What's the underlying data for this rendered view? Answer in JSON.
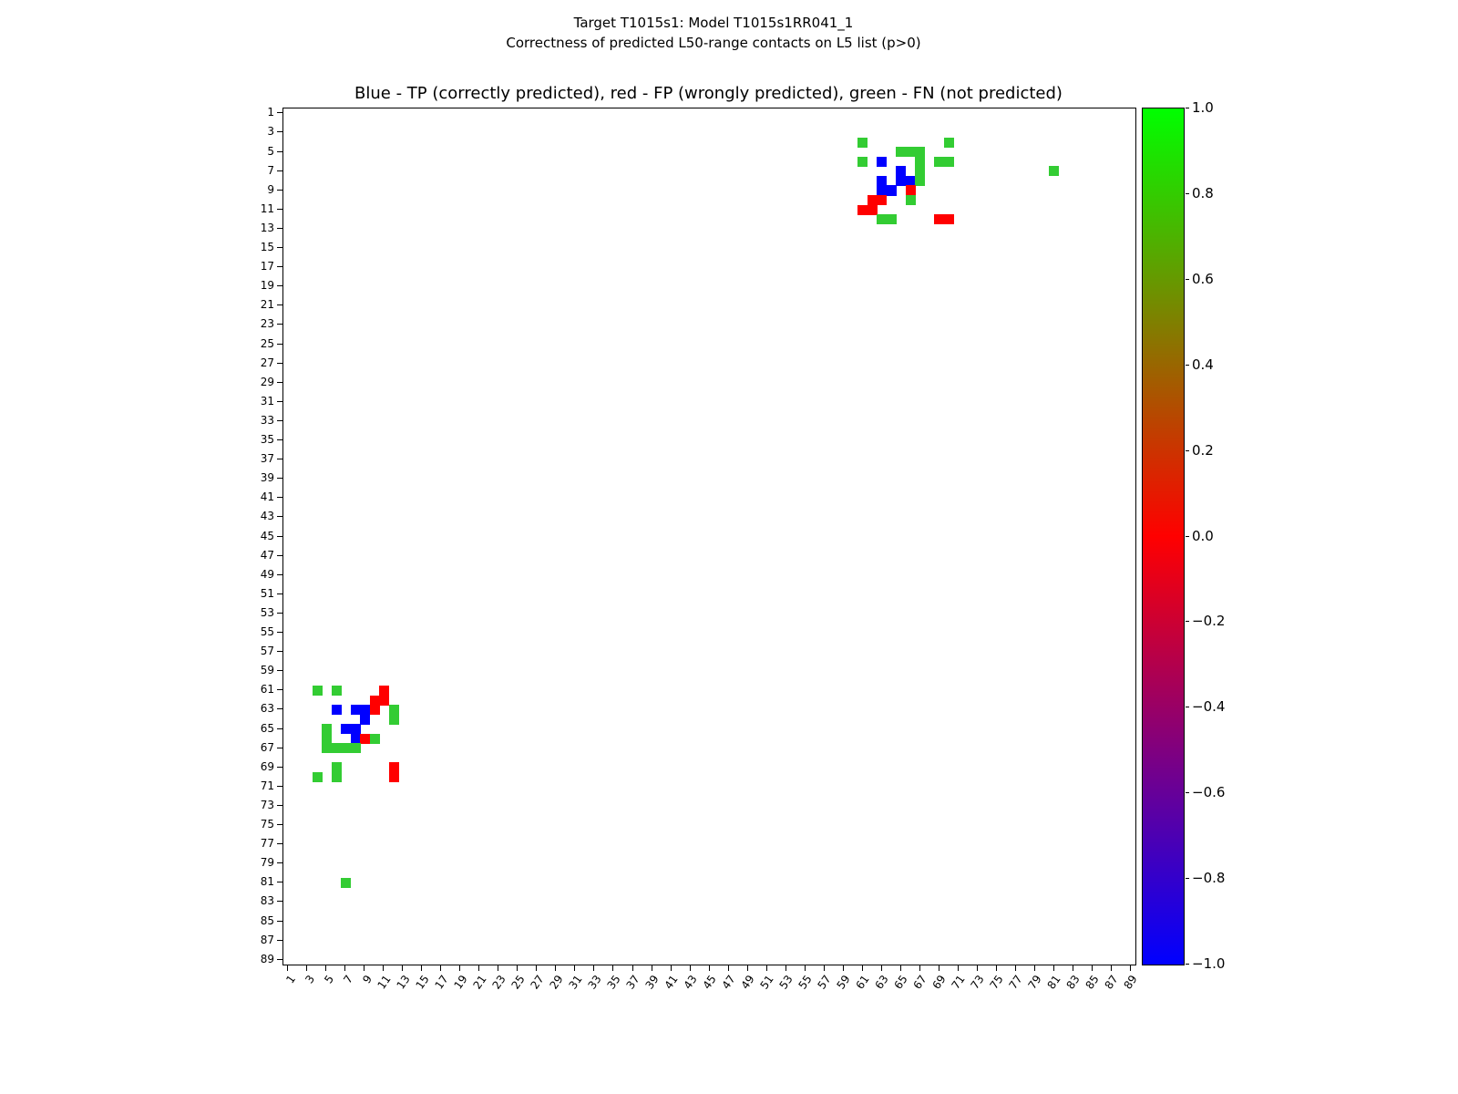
{
  "figure": {
    "title_line1": "Target T1015s1: Model T1015s1RR041_1",
    "title_line2": "Correctness of predicted L50-range contacts on L5 list (p>0)",
    "axes_title": "Blue - TP (correctly predicted), red - FP (wrongly predicted), green - FN (not predicted)"
  },
  "chart_data": {
    "type": "heatmap",
    "title": "Blue - TP (correctly predicted), red - FP (wrongly predicted), green - FN (not predicted)",
    "xlabel": "",
    "ylabel": "",
    "x_range": [
      1,
      90
    ],
    "y_range": [
      1,
      90
    ],
    "y_axis_inverted": true,
    "grid": false,
    "background": "#ffffff",
    "x_tick_labels": [
      "1",
      "3",
      "5",
      "7",
      "9",
      "11",
      "13",
      "15",
      "17",
      "19",
      "21",
      "23",
      "25",
      "27",
      "29",
      "31",
      "33",
      "35",
      "37",
      "39",
      "41",
      "43",
      "45",
      "47",
      "49",
      "51",
      "53",
      "55",
      "57",
      "59",
      "61",
      "63",
      "65",
      "67",
      "69",
      "71",
      "73",
      "75",
      "77",
      "79",
      "81",
      "83",
      "85",
      "87",
      "89"
    ],
    "y_tick_labels": [
      "1",
      "3",
      "5",
      "7",
      "9",
      "11",
      "13",
      "15",
      "17",
      "19",
      "21",
      "23",
      "25",
      "27",
      "29",
      "31",
      "33",
      "35",
      "37",
      "39",
      "41",
      "43",
      "45",
      "47",
      "49",
      "51",
      "53",
      "55",
      "57",
      "59",
      "61",
      "63",
      "65",
      "67",
      "69",
      "71",
      "73",
      "75",
      "77",
      "79",
      "81",
      "83",
      "85",
      "87",
      "89"
    ],
    "classes": {
      "TP": {
        "label": "TP (correctly predicted)",
        "color": "#0000ff"
      },
      "FP": {
        "label": "FP (wrongly predicted)",
        "color": "#ff0000"
      },
      "FN": {
        "label": "FN (not predicted)",
        "color": "#33cc33"
      }
    },
    "points": [
      {
        "x": 61,
        "y": 4,
        "cls": "FN"
      },
      {
        "x": 70,
        "y": 4,
        "cls": "FN"
      },
      {
        "x": 65,
        "y": 5,
        "cls": "FN"
      },
      {
        "x": 66,
        "y": 5,
        "cls": "FN"
      },
      {
        "x": 67,
        "y": 5,
        "cls": "FN"
      },
      {
        "x": 61,
        "y": 6,
        "cls": "FN"
      },
      {
        "x": 63,
        "y": 6,
        "cls": "TP"
      },
      {
        "x": 67,
        "y": 6,
        "cls": "FN"
      },
      {
        "x": 69,
        "y": 6,
        "cls": "FN"
      },
      {
        "x": 70,
        "y": 6,
        "cls": "FN"
      },
      {
        "x": 65,
        "y": 7,
        "cls": "TP"
      },
      {
        "x": 67,
        "y": 7,
        "cls": "FN"
      },
      {
        "x": 81,
        "y": 7,
        "cls": "FN"
      },
      {
        "x": 63,
        "y": 8,
        "cls": "TP"
      },
      {
        "x": 65,
        "y": 8,
        "cls": "TP"
      },
      {
        "x": 66,
        "y": 8,
        "cls": "TP"
      },
      {
        "x": 67,
        "y": 8,
        "cls": "FN"
      },
      {
        "x": 63,
        "y": 9,
        "cls": "TP"
      },
      {
        "x": 64,
        "y": 9,
        "cls": "TP"
      },
      {
        "x": 66,
        "y": 9,
        "cls": "FP"
      },
      {
        "x": 62,
        "y": 10,
        "cls": "FP"
      },
      {
        "x": 63,
        "y": 10,
        "cls": "FP"
      },
      {
        "x": 66,
        "y": 10,
        "cls": "FN"
      },
      {
        "x": 61,
        "y": 11,
        "cls": "FP"
      },
      {
        "x": 62,
        "y": 11,
        "cls": "FP"
      },
      {
        "x": 63,
        "y": 12,
        "cls": "FN"
      },
      {
        "x": 64,
        "y": 12,
        "cls": "FN"
      },
      {
        "x": 69,
        "y": 12,
        "cls": "FP"
      },
      {
        "x": 70,
        "y": 12,
        "cls": "FP"
      },
      {
        "x": 4,
        "y": 61,
        "cls": "FN"
      },
      {
        "x": 6,
        "y": 61,
        "cls": "FN"
      },
      {
        "x": 11,
        "y": 61,
        "cls": "FP"
      },
      {
        "x": 10,
        "y": 62,
        "cls": "FP"
      },
      {
        "x": 11,
        "y": 62,
        "cls": "FP"
      },
      {
        "x": 6,
        "y": 63,
        "cls": "TP"
      },
      {
        "x": 8,
        "y": 63,
        "cls": "TP"
      },
      {
        "x": 9,
        "y": 63,
        "cls": "TP"
      },
      {
        "x": 10,
        "y": 63,
        "cls": "FP"
      },
      {
        "x": 12,
        "y": 63,
        "cls": "FN"
      },
      {
        "x": 9,
        "y": 64,
        "cls": "TP"
      },
      {
        "x": 12,
        "y": 64,
        "cls": "FN"
      },
      {
        "x": 5,
        "y": 65,
        "cls": "FN"
      },
      {
        "x": 7,
        "y": 65,
        "cls": "TP"
      },
      {
        "x": 8,
        "y": 65,
        "cls": "TP"
      },
      {
        "x": 5,
        "y": 66,
        "cls": "FN"
      },
      {
        "x": 8,
        "y": 66,
        "cls": "TP"
      },
      {
        "x": 9,
        "y": 66,
        "cls": "FP"
      },
      {
        "x": 10,
        "y": 66,
        "cls": "FN"
      },
      {
        "x": 5,
        "y": 67,
        "cls": "FN"
      },
      {
        "x": 6,
        "y": 67,
        "cls": "FN"
      },
      {
        "x": 7,
        "y": 67,
        "cls": "FN"
      },
      {
        "x": 8,
        "y": 67,
        "cls": "FN"
      },
      {
        "x": 6,
        "y": 69,
        "cls": "FN"
      },
      {
        "x": 12,
        "y": 69,
        "cls": "FP"
      },
      {
        "x": 4,
        "y": 70,
        "cls": "FN"
      },
      {
        "x": 6,
        "y": 70,
        "cls": "FN"
      },
      {
        "x": 12,
        "y": 70,
        "cls": "FP"
      },
      {
        "x": 7,
        "y": 81,
        "cls": "FN"
      }
    ],
    "colorbar": {
      "min": -1.0,
      "max": 1.0,
      "gradient": [
        "#00ff00",
        "#ff0000",
        "#0000ff"
      ],
      "ticks": [
        {
          "label": "1.0",
          "value": 1.0
        },
        {
          "label": "0.8",
          "value": 0.8
        },
        {
          "label": "0.6",
          "value": 0.6
        },
        {
          "label": "0.4",
          "value": 0.4
        },
        {
          "label": "0.2",
          "value": 0.2
        },
        {
          "label": "0.0",
          "value": 0.0
        },
        {
          "label": "−0.2",
          "value": -0.2
        },
        {
          "label": "−0.4",
          "value": -0.4
        },
        {
          "label": "−0.6",
          "value": -0.6
        },
        {
          "label": "−0.8",
          "value": -0.8
        },
        {
          "label": "−1.0",
          "value": -1.0
        }
      ]
    }
  }
}
